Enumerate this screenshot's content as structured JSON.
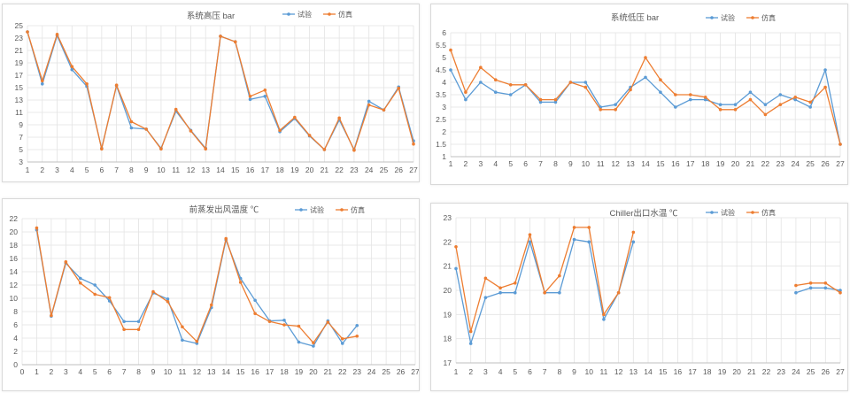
{
  "colors": {
    "test": "#5b9bd5",
    "sim": "#ed7d31",
    "grid": "#e3e3e3",
    "axis": "#bfbfbf"
  },
  "chart_data": [
    {
      "type": "line",
      "title": "系统高压 bar",
      "x": [
        1,
        2,
        3,
        4,
        5,
        6,
        7,
        8,
        9,
        10,
        11,
        12,
        13,
        14,
        15,
        16,
        17,
        18,
        19,
        20,
        21,
        22,
        23,
        24,
        25,
        26,
        27
      ],
      "ylim": [
        3,
        25
      ],
      "yticks": [
        3,
        5,
        7,
        9,
        11,
        13,
        15,
        17,
        19,
        21,
        23,
        25
      ],
      "grid": true,
      "legend": "top-right",
      "series": [
        {
          "name": "试验",
          "color": "#5b9bd5",
          "values": [
            24,
            15.6,
            23.4,
            17.9,
            15.2,
            5.2,
            15.3,
            8.5,
            8.3,
            5.2,
            11.2,
            8.1,
            5.2,
            23.3,
            22.4,
            13.1,
            13.6,
            7.9,
            10,
            7.2,
            5,
            9.8,
            5,
            12.8,
            11.4,
            15.1,
            6.4
          ]
        },
        {
          "name": "仿真",
          "color": "#ed7d31",
          "values": [
            24,
            16.1,
            23.6,
            18.4,
            15.6,
            5.1,
            15.4,
            9.5,
            8.3,
            5.1,
            11.5,
            8,
            5.1,
            23.3,
            22.4,
            13.6,
            14.6,
            8.1,
            10.2,
            7.3,
            5,
            10.1,
            4.9,
            12.2,
            11.4,
            14.9,
            5.9
          ]
        }
      ]
    },
    {
      "type": "line",
      "title": "系统低压 bar",
      "x": [
        1,
        2,
        3,
        4,
        5,
        6,
        7,
        8,
        9,
        10,
        11,
        12,
        13,
        14,
        15,
        16,
        17,
        18,
        19,
        20,
        21,
        22,
        23,
        24,
        25,
        26,
        27
      ],
      "ylim": [
        1,
        6
      ],
      "yticks": [
        1,
        1.5,
        2,
        2.5,
        3,
        3.5,
        4,
        4.5,
        5,
        5.5,
        6
      ],
      "grid": true,
      "legend": "top-right",
      "series": [
        {
          "name": "试验",
          "color": "#5b9bd5",
          "values": [
            4.5,
            3.3,
            4,
            3.6,
            3.5,
            3.9,
            3.2,
            3.2,
            4,
            4,
            3,
            3.1,
            3.8,
            4.2,
            3.6,
            3,
            3.3,
            3.3,
            3.1,
            3.1,
            3.6,
            3.1,
            3.5,
            3.3,
            3,
            4.5,
            1.5
          ]
        },
        {
          "name": "仿真",
          "color": "#ed7d31",
          "values": [
            5.3,
            3.6,
            4.6,
            4.1,
            3.9,
            3.9,
            3.3,
            3.3,
            4,
            3.8,
            2.9,
            2.9,
            3.7,
            5,
            4.1,
            3.5,
            3.5,
            3.4,
            2.9,
            2.9,
            3.3,
            2.7,
            3.1,
            3.4,
            3.2,
            3.8,
            1.5
          ]
        }
      ]
    },
    {
      "type": "line",
      "title": "前蒸发出风温度 ℃",
      "x": [
        0,
        1,
        2,
        3,
        4,
        5,
        6,
        7,
        8,
        9,
        10,
        11,
        12,
        13,
        14,
        15,
        16,
        17,
        18,
        19,
        20,
        21,
        22,
        23,
        24,
        25,
        26,
        27
      ],
      "ylim": [
        0,
        22
      ],
      "yticks": [
        0,
        2,
        4,
        6,
        8,
        10,
        12,
        14,
        16,
        18,
        20,
        22
      ],
      "grid": true,
      "legend": "top-right",
      "series": [
        {
          "name": "试验",
          "color": "#5b9bd5",
          "values": [
            null,
            20.3,
            7.3,
            15.3,
            13,
            12,
            9.6,
            6.5,
            6.5,
            10.8,
            9.9,
            3.7,
            3.2,
            8.6,
            18.8,
            13,
            9.7,
            6.6,
            6.7,
            3.4,
            2.8,
            6.6,
            3.2,
            5.9,
            null,
            null,
            null,
            null
          ]
        },
        {
          "name": "仿真",
          "color": "#ed7d31",
          "values": [
            null,
            20.6,
            7.4,
            15.5,
            12.3,
            10.6,
            10.1,
            5.3,
            5.3,
            11,
            9.5,
            5.7,
            3.5,
            9,
            19,
            12.4,
            7.7,
            6.5,
            6,
            5.8,
            3.3,
            6.4,
            3.9,
            4.3,
            null,
            null,
            null,
            null
          ]
        }
      ]
    },
    {
      "type": "line",
      "title": "Chiller出口水温 ℃",
      "x": [
        1,
        2,
        3,
        4,
        5,
        6,
        7,
        8,
        9,
        10,
        11,
        12,
        13,
        14,
        15,
        16,
        17,
        18,
        19,
        20,
        21,
        22,
        23,
        24,
        25,
        26,
        27
      ],
      "ylim": [
        17,
        23
      ],
      "yticks": [
        17,
        18,
        19,
        20,
        21,
        22,
        23
      ],
      "grid": true,
      "legend": "top-right",
      "series": [
        {
          "name": "试验",
          "color": "#5b9bd5",
          "values": [
            20.9,
            17.8,
            19.7,
            19.9,
            19.9,
            22,
            19.9,
            19.9,
            22.1,
            22,
            18.8,
            19.9,
            22,
            null,
            null,
            null,
            null,
            null,
            null,
            null,
            null,
            null,
            null,
            19.9,
            20.1,
            20.1,
            20
          ]
        },
        {
          "name": "仿真",
          "color": "#ed7d31",
          "values": [
            21.8,
            18.3,
            20.5,
            20.1,
            20.3,
            22.3,
            19.9,
            20.6,
            22.6,
            22.6,
            19,
            19.9,
            22.4,
            null,
            null,
            null,
            null,
            null,
            null,
            null,
            null,
            null,
            null,
            20.2,
            20.3,
            20.3,
            19.9
          ]
        }
      ]
    }
  ]
}
